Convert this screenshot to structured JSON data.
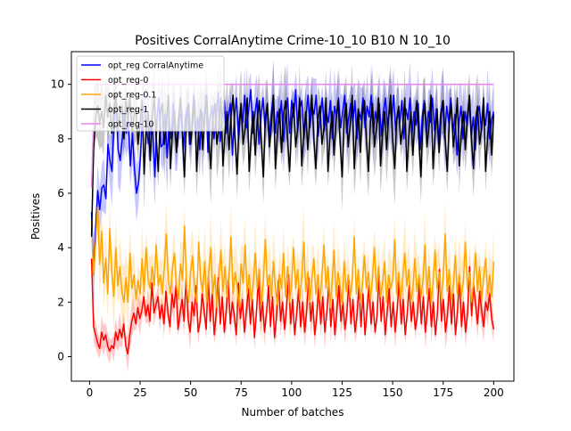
{
  "chart_data": {
    "type": "line",
    "title": "Positives CorralAnytime Crime-10_10 B10 N 10_10",
    "xlabel": "Number of batches",
    "ylabel": "Positives",
    "xlim": [
      -9,
      210
    ],
    "ylim": [
      -0.9,
      11.2
    ],
    "xticks": [
      0,
      25,
      50,
      75,
      100,
      125,
      150,
      175,
      200
    ],
    "yticks": [
      0,
      2,
      4,
      6,
      8,
      10
    ],
    "grid": false,
    "legend": "top-left",
    "n_points": 200,
    "series": [
      {
        "name": "opt_reg CorralAnytime",
        "color": "#0000ff",
        "values": [
          5.3,
          3.0,
          4.7,
          6.1,
          5.4,
          6.2,
          6.3,
          5.8,
          7.8,
          7.2,
          6.8,
          8.6,
          9.4,
          7.6,
          7.2,
          8.0,
          9.0,
          8.2,
          8.7,
          7.0,
          8.2,
          6.9,
          6.0,
          6.4,
          7.4,
          9.2,
          9.1,
          8.3,
          7.8,
          8.6,
          8.2,
          6.6,
          8.7,
          9.5,
          7.7,
          7.8,
          8.9,
          7.3,
          8.6,
          8.0,
          9.3,
          8.1,
          7.7,
          8.6,
          9.1,
          7.6,
          8.8,
          9.2,
          7.8,
          8.3,
          9.6,
          8.1,
          8.8,
          7.6,
          9.0,
          8.4,
          9.6,
          7.5,
          8.7,
          9.2,
          8.0,
          8.8,
          9.7,
          7.9,
          8.8,
          9.4,
          8.2,
          8.8,
          9.3,
          7.4,
          8.8,
          9.5,
          8.0,
          9.0,
          8.6,
          9.6,
          8.4,
          9.1,
          9.8,
          8.2,
          8.9,
          9.5,
          7.8,
          8.8,
          9.5,
          8.4,
          9.2,
          8.0,
          8.9,
          9.6,
          8.2,
          9.0,
          8.6,
          9.4,
          7.9,
          8.8,
          9.5,
          8.2,
          9.4,
          8.8,
          9.8,
          8.3,
          9.1,
          9.4,
          8.0,
          8.8,
          9.6,
          8.4,
          9.2,
          8.9,
          9.6,
          8.1,
          8.8,
          9.5,
          8.3,
          9.0,
          8.6,
          9.4,
          8.0,
          9.2,
          8.8,
          9.5,
          8.4,
          9.0,
          9.6,
          8.2,
          8.8,
          9.3,
          8.6,
          9.4,
          8.0,
          9.0,
          8.7,
          9.5,
          8.4,
          9.2,
          8.8,
          9.6,
          8.2,
          9.0,
          8.6,
          9.3,
          8.1,
          9.0,
          9.5,
          8.4,
          9.2,
          8.7,
          9.6,
          8.3,
          9.0,
          8.6,
          9.4,
          8.0,
          9.1,
          8.7,
          9.5,
          8.2,
          9.0,
          8.5,
          9.3,
          7.6,
          8.8,
          9.4,
          8.2,
          9.0,
          8.6,
          9.5,
          8.3,
          9.1,
          7.8,
          8.9,
          9.4,
          8.0,
          9.2,
          8.6,
          9.5,
          8.2,
          8.9,
          7.4,
          8.6,
          9.2,
          8.0,
          9.0,
          8.5,
          9.4,
          8.1,
          8.8,
          7.6,
          8.9,
          9.2,
          8.3,
          9.0,
          8.5,
          9.3,
          8.0,
          8.7,
          9.0
        ]
      },
      {
        "name": "opt_reg-0",
        "color": "#ff0000",
        "values": [
          3.6,
          1.1,
          0.8,
          0.5,
          0.3,
          0.9,
          0.6,
          0.8,
          0.4,
          0.2,
          0.4,
          0.3,
          0.9,
          0.6,
          1.0,
          0.7,
          1.2,
          0.4,
          0.1,
          0.8,
          1.3,
          1.6,
          1.2,
          1.8,
          1.4,
          1.7,
          2.2,
          1.5,
          1.9,
          1.3,
          2.7,
          1.6,
          1.9,
          2.2,
          1.4,
          1.9,
          1.2,
          2.4,
          1.6,
          1.1,
          2.3,
          1.8,
          2.6,
          1.0,
          1.6,
          2.1,
          1.3,
          2.9,
          1.4,
          0.9,
          2.0,
          1.5,
          2.6,
          0.9,
          1.3,
          2.3,
          1.7,
          1.0,
          2.9,
          1.3,
          2.3,
          0.8,
          1.6,
          2.9,
          1.2,
          2.2,
          0.9,
          1.7,
          2.8,
          1.2,
          2.0,
          1.5,
          0.8,
          2.7,
          1.4,
          2.1,
          0.9,
          1.7,
          2.5,
          1.2,
          2.1,
          0.7,
          1.6,
          2.9,
          1.3,
          2.0,
          0.9,
          1.6,
          2.6,
          1.1,
          2.2,
          0.7,
          1.5,
          2.8,
          1.3,
          2.0,
          1.0,
          1.8,
          3.0,
          1.2,
          2.1,
          0.8,
          1.6,
          2.5,
          1.1,
          2.0,
          0.9,
          1.7,
          2.9,
          1.3,
          2.0,
          0.8,
          1.5,
          2.6,
          1.2,
          2.2,
          0.9,
          1.6,
          2.7,
          1.1,
          2.1,
          0.8,
          1.7,
          2.6,
          1.3,
          2.0,
          1.0,
          1.6,
          2.8,
          1.2,
          2.1,
          0.9,
          1.5,
          2.6,
          1.1,
          2.3,
          0.8,
          1.7,
          2.6,
          1.2,
          2.0,
          0.9,
          1.5,
          3.0,
          1.3,
          2.2,
          0.8,
          1.6,
          2.5,
          1.1,
          2.0,
          0.9,
          1.7,
          2.8,
          1.2,
          2.1,
          0.8,
          1.6,
          2.6,
          1.3,
          2.0,
          1.0,
          1.5,
          2.7,
          1.2,
          2.2,
          0.9,
          1.7,
          2.5,
          1.1,
          2.0,
          0.8,
          1.6,
          3.2,
          1.3,
          2.1,
          0.9,
          1.5,
          2.6,
          1.2,
          2.3,
          0.8,
          1.7,
          2.9,
          1.1,
          2.0,
          0.9,
          1.6,
          3.3,
          1.5,
          2.6,
          1.9,
          1.2,
          2.4,
          1.7,
          1.1,
          2.0,
          1.7,
          2.3,
          1.4,
          1.0
        ]
      },
      {
        "name": "opt_reg-0.1",
        "color": "#ffa500",
        "values": [
          5.0,
          3.0,
          4.2,
          5.5,
          3.4,
          4.6,
          2.7,
          3.6,
          2.3,
          4.7,
          3.1,
          2.2,
          4.0,
          2.6,
          3.3,
          2.4,
          2.0,
          2.9,
          2.0,
          3.8,
          2.5,
          3.0,
          2.1,
          2.8,
          2.3,
          3.6,
          2.4,
          4.0,
          2.8,
          2.5,
          3.3,
          2.6,
          4.1,
          2.6,
          3.0,
          2.3,
          3.3,
          4.5,
          2.8,
          2.3,
          3.2,
          3.8,
          2.6,
          2.1,
          3.4,
          2.8,
          4.8,
          2.5,
          2.0,
          3.1,
          3.7,
          2.4,
          2.0,
          4.2,
          2.8,
          2.4,
          3.5,
          2.0,
          3.1,
          4.0,
          2.3,
          3.0,
          1.8,
          2.8,
          3.9,
          2.4,
          3.3,
          2.2,
          2.9,
          4.4,
          2.3,
          3.1,
          2.6,
          1.8,
          3.4,
          2.7,
          4.1,
          2.3,
          3.0,
          2.0,
          2.7,
          3.8,
          2.5,
          3.2,
          1.9,
          2.8,
          4.3,
          2.6,
          3.0,
          2.2,
          3.5,
          2.5,
          1.9,
          3.0,
          2.5,
          3.8,
          2.2,
          3.3,
          2.0,
          2.7,
          4.0,
          2.5,
          3.2,
          2.1,
          2.9,
          4.2,
          2.4,
          3.1,
          2.0,
          2.8,
          3.6,
          2.3,
          3.0,
          2.1,
          2.9,
          4.1,
          2.5,
          3.3,
          1.8,
          2.7,
          3.9,
          2.2,
          3.1,
          2.6,
          1.9,
          3.5,
          2.4,
          3.0,
          2.2,
          2.8,
          4.4,
          2.3,
          3.2,
          2.0,
          2.6,
          3.7,
          2.5,
          3.1,
          2.1,
          2.9,
          4.0,
          2.4,
          3.3,
          2.2,
          2.7,
          3.5,
          2.0,
          3.0,
          2.5,
          2.8,
          4.3,
          2.3,
          3.1,
          2.1,
          2.9,
          3.8,
          2.6,
          3.2,
          2.0,
          2.5,
          3.6,
          2.4,
          3.0,
          2.2,
          2.8,
          4.1,
          2.3,
          3.3,
          2.0,
          2.7,
          3.9,
          2.5,
          3.1,
          2.1,
          2.9,
          4.5,
          2.4,
          3.2,
          2.0,
          2.6,
          3.7,
          2.3,
          3.0,
          2.2,
          2.8,
          4.2,
          2.5,
          3.1,
          2.0,
          2.7,
          3.8,
          2.4,
          3.3,
          2.1,
          2.9,
          3.6,
          2.3,
          3.0,
          2.2,
          3.5
        ]
      },
      {
        "name": "opt_reg-1",
        "color": "#000000",
        "values": [
          4.4,
          7.6,
          8.8,
          9.2,
          8.6,
          9.0,
          8.4,
          9.6,
          8.8,
          9.3,
          8.2,
          9.0,
          9.6,
          8.4,
          8.9,
          9.2,
          8.0,
          9.4,
          8.7,
          9.6,
          8.3,
          8.8,
          9.1,
          7.8,
          8.6,
          9.4,
          6.7,
          8.3,
          9.0,
          7.2,
          8.8,
          9.5,
          8.0,
          6.8,
          8.9,
          9.3,
          7.8,
          8.5,
          9.6,
          6.9,
          8.2,
          9.0,
          7.5,
          8.7,
          9.5,
          8.1,
          6.6,
          8.8,
          9.3,
          7.8,
          8.6,
          9.4,
          6.8,
          8.3,
          9.1,
          7.6,
          8.9,
          9.6,
          8.0,
          6.9,
          8.7,
          9.3,
          7.8,
          8.4,
          9.5,
          7.0,
          8.2,
          9.0,
          7.6,
          8.8,
          9.6,
          8.0,
          6.7,
          8.6,
          9.3,
          7.8,
          8.4,
          9.5,
          6.8,
          8.1,
          9.0,
          7.4,
          8.7,
          9.4,
          7.9,
          6.6,
          8.8,
          9.3,
          7.7,
          8.5,
          9.6,
          6.9,
          8.2,
          9.1,
          7.5,
          8.9,
          9.4,
          8.0,
          6.8,
          8.6,
          9.3,
          7.7,
          8.4,
          9.5,
          7.0,
          8.2,
          9.0,
          7.6,
          8.8,
          9.6,
          8.0,
          6.9,
          8.7,
          9.2,
          7.8,
          8.4,
          9.5,
          6.8,
          8.1,
          9.0,
          7.4,
          8.7,
          9.4,
          7.9,
          6.6,
          8.8,
          9.3,
          7.7,
          8.5,
          9.6,
          6.9,
          8.2,
          9.1,
          7.5,
          8.9,
          9.4,
          8.0,
          6.8,
          8.6,
          9.3,
          7.7,
          8.4,
          9.5,
          7.0,
          8.2,
          9.0,
          7.6,
          8.8,
          9.6,
          8.0,
          6.9,
          8.7,
          9.2,
          7.8,
          8.4,
          9.5,
          6.8,
          8.1,
          9.0,
          7.4,
          8.7,
          9.4,
          7.9,
          6.6,
          8.8,
          9.3,
          7.7,
          8.5,
          9.6,
          6.9,
          8.2,
          9.1,
          7.5,
          8.9,
          9.4,
          8.0,
          6.8,
          8.6,
          9.3,
          7.7,
          8.4,
          9.5,
          7.0,
          8.2,
          9.0,
          7.6,
          8.8,
          9.6,
          8.0,
          6.9,
          8.7,
          9.2,
          7.8,
          8.4,
          9.5,
          6.8,
          8.1,
          9.0,
          7.4,
          8.9
        ]
      },
      {
        "name": "opt_reg-10",
        "color": "#ee82ee",
        "values": [
          6.2,
          8.8,
          10.0,
          10.0,
          10.0,
          10.0,
          10.0,
          10.0,
          10.0,
          10.0,
          10.0,
          10.0,
          10.0,
          10.0,
          10.0,
          10.0,
          10.0,
          10.0,
          10.0,
          10.0,
          10.0,
          10.0,
          10.0,
          10.0,
          10.0,
          10.0,
          10.0,
          10.0,
          10.0,
          10.0,
          10.0,
          10.0,
          10.0,
          10.0,
          10.0,
          10.0,
          10.0,
          10.0,
          10.0,
          10.0,
          10.0,
          10.0,
          10.0,
          10.0,
          10.0,
          10.0,
          10.0,
          10.0,
          10.0,
          10.0,
          10.0,
          10.0,
          10.0,
          10.0,
          10.0,
          10.0,
          10.0,
          10.0,
          10.0,
          10.0,
          10.0,
          10.0,
          10.0,
          10.0,
          10.0,
          10.0,
          10.0,
          10.0,
          10.0,
          10.0,
          10.0,
          10.0,
          10.0,
          10.0,
          10.0,
          10.0,
          10.0,
          10.0,
          10.0,
          10.0,
          10.0,
          10.0,
          10.0,
          10.0,
          10.0,
          10.0,
          10.0,
          10.0,
          10.0,
          10.0,
          10.0,
          10.0,
          10.0,
          10.0,
          10.0,
          10.0,
          10.0,
          10.0,
          10.0,
          10.0,
          10.0,
          10.0,
          10.0,
          10.0,
          10.0,
          10.0,
          10.0,
          10.0,
          10.0,
          10.0,
          10.0,
          10.0,
          10.0,
          10.0,
          10.0,
          10.0,
          10.0,
          10.0,
          10.0,
          10.0,
          10.0,
          10.0,
          10.0,
          10.0,
          10.0,
          10.0,
          10.0,
          10.0,
          10.0,
          10.0,
          10.0,
          10.0,
          10.0,
          10.0,
          10.0,
          10.0,
          10.0,
          10.0,
          10.0,
          10.0,
          10.0,
          10.0,
          10.0,
          10.0,
          10.0,
          10.0,
          10.0,
          10.0,
          10.0,
          10.0,
          10.0,
          10.0,
          10.0,
          10.0,
          10.0,
          10.0,
          10.0,
          10.0,
          10.0,
          10.0,
          10.0,
          10.0,
          10.0,
          10.0,
          10.0,
          10.0,
          10.0,
          10.0,
          10.0,
          10.0,
          10.0,
          10.0,
          10.0,
          10.0,
          10.0,
          10.0,
          10.0,
          10.0,
          10.0,
          10.0,
          10.0,
          10.0,
          10.0,
          10.0,
          10.0,
          10.0,
          10.0,
          10.0,
          10.0,
          10.0,
          10.0,
          10.0,
          10.0,
          10.0,
          10.0,
          10.0,
          10.0,
          10.0,
          10.0,
          10.0,
          10.0,
          10.0
        ]
      }
    ]
  }
}
